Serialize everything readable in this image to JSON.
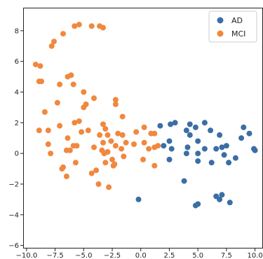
{
  "chart_data": {
    "type": "scatter",
    "title": "",
    "xlabel": "",
    "ylabel": "",
    "xlim": [
      -10.3,
      10.7
    ],
    "ylim": [
      -6.2,
      9.5
    ],
    "xticks": [
      -10.0,
      -7.5,
      -5.0,
      -2.5,
      0.0,
      2.5,
      5.0,
      7.5,
      10.0
    ],
    "xtick_labels": [
      "−10.0",
      "−7.5",
      "−5.0",
      "−2.5",
      "0.0",
      "2.5",
      "5.0",
      "7.5",
      "10.0"
    ],
    "yticks": [
      -6,
      -4,
      -2,
      0,
      2,
      4,
      6,
      8
    ],
    "ytick_labels": [
      "−6",
      "−4",
      "−2",
      "0",
      "2",
      "4",
      "6",
      "8"
    ],
    "grid": false,
    "legend_position": "top-right",
    "series": [
      {
        "name": "AD",
        "color": "#3a6ea5",
        "points": [
          [
            1.7,
            1.8
          ],
          [
            2.6,
            1.9
          ],
          [
            3.0,
            2.0
          ],
          [
            2.0,
            0.5
          ],
          [
            2.5,
            0.8
          ],
          [
            2.7,
            0.3
          ],
          [
            2.5,
            -0.4
          ],
          [
            4.0,
            1.5
          ],
          [
            4.3,
            1.2
          ],
          [
            4.3,
            1.9
          ],
          [
            4.8,
            1.7
          ],
          [
            4.1,
            0.4
          ],
          [
            4.0,
            0.0
          ],
          [
            5.0,
            0.8
          ],
          [
            5.0,
            0.0
          ],
          [
            5.0,
            -0.5
          ],
          [
            5.6,
            2.0
          ],
          [
            5.6,
            0.3
          ],
          [
            6.1,
            1.5
          ],
          [
            6.6,
            0.3
          ],
          [
            6.2,
            -0.6
          ],
          [
            6.9,
            1.2
          ],
          [
            7.1,
            0.4
          ],
          [
            7.5,
            0.5
          ],
          [
            7.3,
            -0.1
          ],
          [
            7.7,
            -0.6
          ],
          [
            8.3,
            -0.3
          ],
          [
            8.8,
            1.0
          ],
          [
            9.0,
            1.7
          ],
          [
            9.5,
            1.3
          ],
          [
            9.9,
            0.3
          ],
          [
            10.0,
            0.2
          ],
          [
            3.8,
            -1.8
          ],
          [
            6.6,
            -2.8
          ],
          [
            6.9,
            -3.0
          ],
          [
            7.1,
            -2.7
          ],
          [
            7.8,
            -3.2
          ],
          [
            4.8,
            -3.4
          ],
          [
            5.0,
            -3.3
          ],
          [
            -0.2,
            -3.0
          ]
        ]
      },
      {
        "name": "MCI",
        "color": "#f0883e",
        "points": [
          [
            -5.8,
            8.3
          ],
          [
            -5.4,
            8.4
          ],
          [
            -4.3,
            8.3
          ],
          [
            -3.6,
            8.3
          ],
          [
            -3.3,
            8.2
          ],
          [
            -6.8,
            7.8
          ],
          [
            -7.6,
            7.3
          ],
          [
            -7.8,
            7.0
          ],
          [
            -9.2,
            5.8
          ],
          [
            -8.8,
            5.7
          ],
          [
            -8.9,
            4.7
          ],
          [
            -8.7,
            4.7
          ],
          [
            -6.4,
            5.0
          ],
          [
            -6.1,
            5.1
          ],
          [
            -5.9,
            4.5
          ],
          [
            -7.1,
            4.5
          ],
          [
            -5.0,
            4.0
          ],
          [
            -4.8,
            3.2
          ],
          [
            -5.0,
            3.0
          ],
          [
            -4.1,
            3.6
          ],
          [
            -7.3,
            3.3
          ],
          [
            -8.4,
            2.7
          ],
          [
            -7.1,
            1.8
          ],
          [
            -5.8,
            2.0
          ],
          [
            -5.4,
            2.1
          ],
          [
            -2.2,
            3.5
          ],
          [
            -2.2,
            3.2
          ],
          [
            -1.6,
            2.4
          ],
          [
            -3.3,
            1.9
          ],
          [
            -3.1,
            1.6
          ],
          [
            -8.9,
            1.5
          ],
          [
            -8.1,
            1.5
          ],
          [
            -5.2,
            1.4
          ],
          [
            -4.6,
            1.5
          ],
          [
            -3.6,
            1.2
          ],
          [
            -2.9,
            1.2
          ],
          [
            -2.0,
            1.3
          ],
          [
            -1.6,
            1.2
          ],
          [
            -0.4,
            1.4
          ],
          [
            0.3,
            1.7
          ],
          [
            0.9,
            1.3
          ],
          [
            1.2,
            1.3
          ],
          [
            -6.4,
            1.0
          ],
          [
            -3.3,
            0.7
          ],
          [
            -2.6,
            0.8
          ],
          [
            -1.3,
            0.7
          ],
          [
            -0.6,
            0.6
          ],
          [
            0.3,
            0.7
          ],
          [
            0.7,
            0.3
          ],
          [
            1.2,
            0.4
          ],
          [
            1.5,
            0.5
          ],
          [
            -8.1,
            0.6
          ],
          [
            -7.9,
            0.0
          ],
          [
            -6.5,
            0.2
          ],
          [
            -6.2,
            0.2
          ],
          [
            -5.9,
            0.5
          ],
          [
            -5.6,
            0.5
          ],
          [
            -4.1,
            0.4
          ],
          [
            -3.4,
            0.2
          ],
          [
            -3.2,
            0.0
          ],
          [
            -2.9,
            0.1
          ],
          [
            -2.2,
            0.5
          ],
          [
            -1.7,
            0.3
          ],
          [
            -1.5,
            -0.2
          ],
          [
            -5.7,
            -0.6
          ],
          [
            -3.1,
            -0.6
          ],
          [
            -2.5,
            -0.4
          ],
          [
            -2.3,
            -0.7
          ],
          [
            -6.9,
            -1.0
          ],
          [
            -6.5,
            -1.5
          ],
          [
            -4.3,
            -1.3
          ],
          [
            -3.9,
            -1.1
          ],
          [
            -2.4,
            -0.8
          ],
          [
            -3.7,
            -2.0
          ],
          [
            -2.8,
            -2.2
          ],
          [
            1.2,
            -0.8
          ],
          [
            0.2,
            -0.4
          ],
          [
            -6.8,
            -0.9
          ]
        ]
      }
    ]
  }
}
